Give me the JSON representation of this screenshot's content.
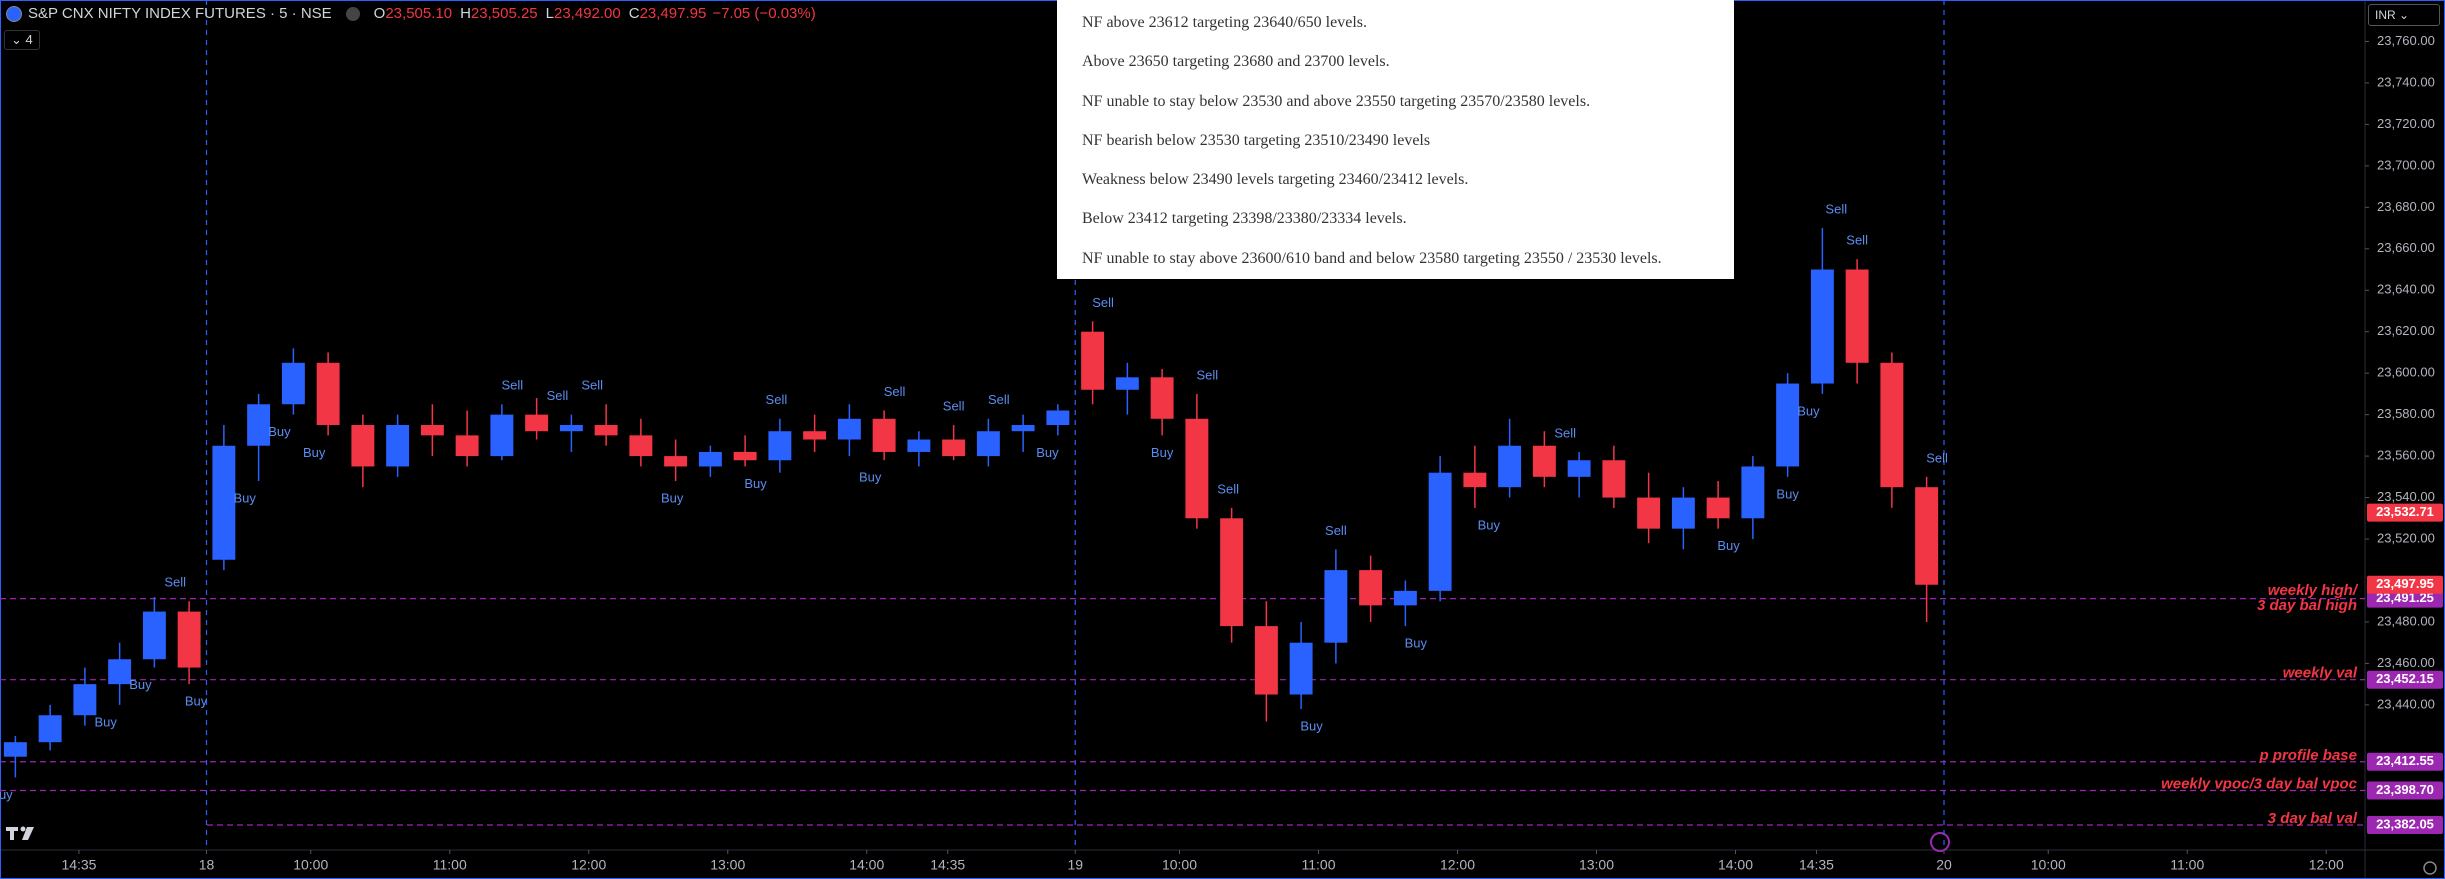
{
  "header": {
    "symbol": "S&P CNX NIFTY INDEX FUTURES · 5 · NSE",
    "ohlc": [
      {
        "key": "O",
        "value": "23,505.10"
      },
      {
        "key": "H",
        "value": "23,505.25"
      },
      {
        "key": "L",
        "value": "23,492.00"
      },
      {
        "key": "C",
        "value": "23,497.95"
      }
    ],
    "change": "−7.05 (−0.03%)",
    "indicator_count": "4",
    "currency": "INR"
  },
  "notes": [
    "NF above 23612 targeting 23640/650 levels.",
    "Above 23650 targeting 23680 and 23700 levels.",
    "NF unable to stay below 23530 and above 23550 targeting 23570/23580 levels.",
    "NF bearish below 23530 targeting 23510/23490 levels",
    "Weakness below 23490 levels targeting 23460/23412 levels.",
    "Below 23412 targeting 23398/23380/23334 levels.",
    "NF unable to stay above 23600/610 band and below 23580 targeting 23550 / 23530 levels."
  ],
  "chart_data": {
    "type": "candlestick",
    "up_color": "#2962ff",
    "down_color": "#f23645",
    "grid": false,
    "candles": [
      [
        23415,
        23425,
        23405,
        23422
      ],
      [
        23422,
        23440,
        23418,
        23435
      ],
      [
        23435,
        23458,
        23430,
        23450
      ],
      [
        23450,
        23470,
        23440,
        23462
      ],
      [
        23462,
        23492,
        23458,
        23485
      ],
      [
        23485,
        23490,
        23450,
        23458
      ],
      [
        23510,
        23575,
        23505,
        23565
      ],
      [
        23565,
        23590,
        23548,
        23585
      ],
      [
        23585,
        23612,
        23580,
        23605
      ],
      [
        23605,
        23610,
        23570,
        23575
      ],
      [
        23575,
        23580,
        23545,
        23555
      ],
      [
        23555,
        23580,
        23550,
        23575
      ],
      [
        23575,
        23585,
        23560,
        23570
      ],
      [
        23570,
        23582,
        23555,
        23560
      ],
      [
        23560,
        23585,
        23558,
        23580
      ],
      [
        23580,
        23588,
        23568,
        23572
      ],
      [
        23572,
        23580,
        23562,
        23575
      ],
      [
        23575,
        23585,
        23565,
        23570
      ],
      [
        23570,
        23578,
        23555,
        23560
      ],
      [
        23560,
        23568,
        23548,
        23555
      ],
      [
        23555,
        23565,
        23550,
        23562
      ],
      [
        23562,
        23570,
        23555,
        23558
      ],
      [
        23558,
        23578,
        23552,
        23572
      ],
      [
        23572,
        23580,
        23562,
        23568
      ],
      [
        23568,
        23585,
        23560,
        23578
      ],
      [
        23578,
        23582,
        23558,
        23562
      ],
      [
        23562,
        23572,
        23555,
        23568
      ],
      [
        23568,
        23575,
        23558,
        23560
      ],
      [
        23560,
        23578,
        23555,
        23572
      ],
      [
        23572,
        23580,
        23562,
        23575
      ],
      [
        23575,
        23585,
        23570,
        23582
      ],
      [
        23620,
        23625,
        23585,
        23592
      ],
      [
        23592,
        23605,
        23580,
        23598
      ],
      [
        23598,
        23602,
        23570,
        23578
      ],
      [
        23578,
        23590,
        23525,
        23530
      ],
      [
        23530,
        23535,
        23470,
        23478
      ],
      [
        23478,
        23490,
        23432,
        23445
      ],
      [
        23445,
        23480,
        23438,
        23470
      ],
      [
        23470,
        23515,
        23460,
        23505
      ],
      [
        23505,
        23512,
        23480,
        23488
      ],
      [
        23488,
        23500,
        23478,
        23495
      ],
      [
        23495,
        23560,
        23490,
        23552
      ],
      [
        23552,
        23565,
        23535,
        23545
      ],
      [
        23545,
        23578,
        23540,
        23565
      ],
      [
        23565,
        23572,
        23545,
        23550
      ],
      [
        23550,
        23562,
        23540,
        23558
      ],
      [
        23558,
        23565,
        23535,
        23540
      ],
      [
        23540,
        23552,
        23518,
        23525
      ],
      [
        23525,
        23545,
        23515,
        23540
      ],
      [
        23540,
        23548,
        23525,
        23530
      ],
      [
        23530,
        23560,
        23520,
        23555
      ],
      [
        23555,
        23600,
        23550,
        23595
      ],
      [
        23595,
        23670,
        23590,
        23650
      ],
      [
        23650,
        23655,
        23595,
        23605
      ],
      [
        23605,
        23610,
        23535,
        23545
      ],
      [
        23545,
        23550,
        23480,
        23497.95
      ]
    ],
    "signals": [
      {
        "x": 0.1,
        "label": "Buy"
      },
      {
        "x": 3.1,
        "label": "Buy"
      },
      {
        "x": 4.1,
        "label": "Buy"
      },
      {
        "x": 5.1,
        "label": "Sell"
      },
      {
        "x": 5.7,
        "label": "Buy"
      },
      {
        "x": 7.1,
        "label": "Buy"
      },
      {
        "x": 8.1,
        "label": "Buy"
      },
      {
        "x": 9.1,
        "label": "Buy"
      },
      {
        "x": 14.8,
        "label": "Sell"
      },
      {
        "x": 16.1,
        "label": "Sell"
      },
      {
        "x": 17.1,
        "label": "Sell"
      },
      {
        "x": 19.4,
        "label": "Buy"
      },
      {
        "x": 21.8,
        "label": "Buy"
      },
      {
        "x": 22.4,
        "label": "Sell"
      },
      {
        "x": 25.1,
        "label": "Buy"
      },
      {
        "x": 25.8,
        "label": "Sell"
      },
      {
        "x": 27.5,
        "label": "Sell"
      },
      {
        "x": 28.8,
        "label": "Sell"
      },
      {
        "x": 30.2,
        "label": "Buy"
      },
      {
        "x": 31.8,
        "label": "Sell"
      },
      {
        "x": 33.5,
        "label": "Buy"
      },
      {
        "x": 34.8,
        "label": "Sell"
      },
      {
        "x": 35.4,
        "label": "Sell"
      },
      {
        "x": 37.8,
        "label": "Buy"
      },
      {
        "x": 38.5,
        "label": "Sell"
      },
      {
        "x": 40.8,
        "label": "Buy"
      },
      {
        "x": 42.9,
        "label": "Buy"
      },
      {
        "x": 45.1,
        "label": "Sell"
      },
      {
        "x": 49.8,
        "label": "Buy"
      },
      {
        "x": 51.5,
        "label": "Buy"
      },
      {
        "x": 52.1,
        "label": "Buy"
      },
      {
        "x": 52.9,
        "label": "Sell"
      },
      {
        "x": 53.5,
        "label": "Sell"
      },
      {
        "x": 55.8,
        "label": "Sell"
      }
    ],
    "levels": [
      {
        "value": 23491.25,
        "value_label": "23,491.25",
        "label": [
          "weekly high/",
          "3 day bal high"
        ]
      },
      {
        "value": 23452.15,
        "value_label": "23,452.15",
        "label": [
          "weekly val"
        ]
      },
      {
        "value": 23412.55,
        "value_label": "23,412.55",
        "label": [
          "p profile base"
        ]
      },
      {
        "value": 23398.7,
        "value_label": "23,398.70",
        "label": [
          "weekly vpoc/3 day bal vpoc"
        ]
      },
      {
        "value": 23382.05,
        "value_label": "23,382.05",
        "label": [
          "3 day bal val"
        ]
      }
    ],
    "price_tags": [
      {
        "value": 23532.71,
        "label": "23,532.71",
        "color": "#f23645"
      },
      {
        "value": 23497.95,
        "label": "23,497.95",
        "color": "#f23645"
      }
    ],
    "ylim": [
      23370,
      23780
    ],
    "yticks": [
      {
        "value": 23760,
        "label": "23,760.00"
      },
      {
        "value": 23740,
        "label": "23,740.00"
      },
      {
        "value": 23720,
        "label": "23,720.00"
      },
      {
        "value": 23700,
        "label": "23,700.00"
      },
      {
        "value": 23680,
        "label": "23,680.00"
      },
      {
        "value": 23660,
        "label": "23,660.00"
      },
      {
        "value": 23640,
        "label": "23,640.00"
      },
      {
        "value": 23620,
        "label": "23,620.00"
      },
      {
        "value": 23600,
        "label": "23,600.00"
      },
      {
        "value": 23580,
        "label": "23,580.00"
      },
      {
        "value": 23560,
        "label": "23,560.00"
      },
      {
        "value": 23540,
        "label": "23,540.00"
      },
      {
        "value": 23520,
        "label": "23,520.00"
      },
      {
        "value": 23480,
        "label": "23,480.00"
      },
      {
        "value": 23460,
        "label": "23,460.00"
      },
      {
        "value": 23440,
        "label": "23,440.00"
      }
    ],
    "xticks": [
      {
        "value": 2.33,
        "label": "14:35"
      },
      {
        "value": 6,
        "label": "18"
      },
      {
        "value": 9,
        "label": "10:00"
      },
      {
        "value": 13,
        "label": "11:00"
      },
      {
        "value": 17,
        "label": "12:00"
      },
      {
        "value": 21,
        "label": "13:00"
      },
      {
        "value": 25,
        "label": "14:00"
      },
      {
        "value": 27.33,
        "label": "14:35"
      },
      {
        "value": 31,
        "label": "19"
      },
      {
        "value": 34,
        "label": "10:00"
      },
      {
        "value": 38,
        "label": "11:00"
      },
      {
        "value": 42,
        "label": "12:00"
      },
      {
        "value": 46,
        "label": "13:00"
      },
      {
        "value": 50,
        "label": "14:00"
      },
      {
        "value": 52.33,
        "label": "14:35"
      },
      {
        "value": 56,
        "label": "20"
      },
      {
        "value": 59,
        "label": "10:00"
      },
      {
        "value": 63,
        "label": "11:00"
      },
      {
        "value": 67,
        "label": "12:00"
      }
    ]
  }
}
